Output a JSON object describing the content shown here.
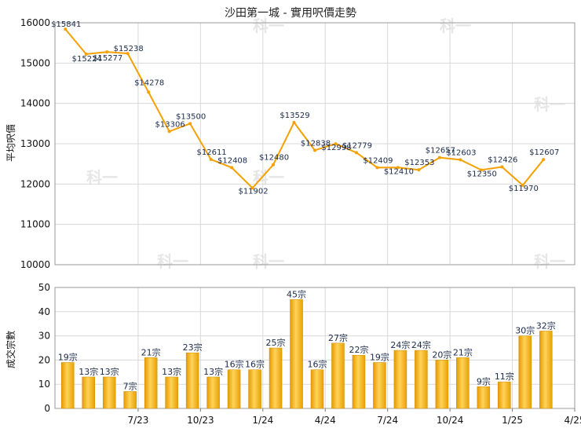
{
  "page": {
    "title": "沙田第一城 - 實用呎價走勢",
    "watermark": "科一"
  },
  "chart_data": [
    {
      "type": "line",
      "ylabel": "平均呎價",
      "ylim": [
        10000,
        16000
      ],
      "yticks": [
        10000,
        11000,
        12000,
        13000,
        14000,
        15000,
        16000
      ],
      "grid": true,
      "color": "#f5a000",
      "series": [
        {
          "values": [
            15841,
            15224,
            15277,
            15238,
            14278,
            13306,
            13500,
            12611,
            12408,
            11902,
            12480,
            13529,
            12838,
            12998,
            12779,
            12409,
            12410,
            12353,
            12657,
            12603,
            12350,
            12426,
            11970,
            12607
          ],
          "labels": [
            "$15841",
            "$15224",
            "$15277",
            "$15238",
            "$14278",
            "$13306",
            "$13500",
            "$12611",
            "$12408",
            "$11902",
            "$12480",
            "$13529",
            "$12838",
            "$12998",
            "$12779",
            "$12409",
            "$12410",
            "$12353",
            "$12657",
            "$12603",
            "$12350",
            "$12426",
            "$11970",
            "$12607"
          ]
        }
      ]
    },
    {
      "type": "bar",
      "ylabel": "成交宗數",
      "ylim": [
        0,
        50
      ],
      "yticks": [
        0,
        10,
        20,
        30,
        40,
        50
      ],
      "xticks": [
        {
          "after_index": 3,
          "label": "7/23"
        },
        {
          "after_index": 6,
          "label": "10/23"
        },
        {
          "after_index": 9,
          "label": "1/24"
        },
        {
          "after_index": 12,
          "label": "4/24"
        },
        {
          "after_index": 15,
          "label": "7/24"
        },
        {
          "after_index": 18,
          "label": "10/24"
        },
        {
          "after_index": 21,
          "label": "1/25"
        },
        {
          "after_index": 24,
          "label": "4/25"
        }
      ],
      "grid": true,
      "color": "#f5a800",
      "series": [
        {
          "values": [
            19,
            13,
            13,
            7,
            21,
            13,
            23,
            13,
            16,
            16,
            25,
            45,
            16,
            27,
            22,
            19,
            24,
            24,
            20,
            21,
            9,
            11,
            30,
            32
          ],
          "labels": [
            "19宗",
            "13宗",
            "13宗",
            "7宗",
            "21宗",
            "13宗",
            "23宗",
            "13宗",
            "16宗",
            "16宗",
            "25宗",
            "45宗",
            "16宗",
            "27宗",
            "22宗",
            "19宗",
            "24宗",
            "24宗",
            "20宗",
            "21宗",
            "9宗",
            "11宗",
            "30宗",
            "32宗"
          ]
        }
      ]
    }
  ]
}
